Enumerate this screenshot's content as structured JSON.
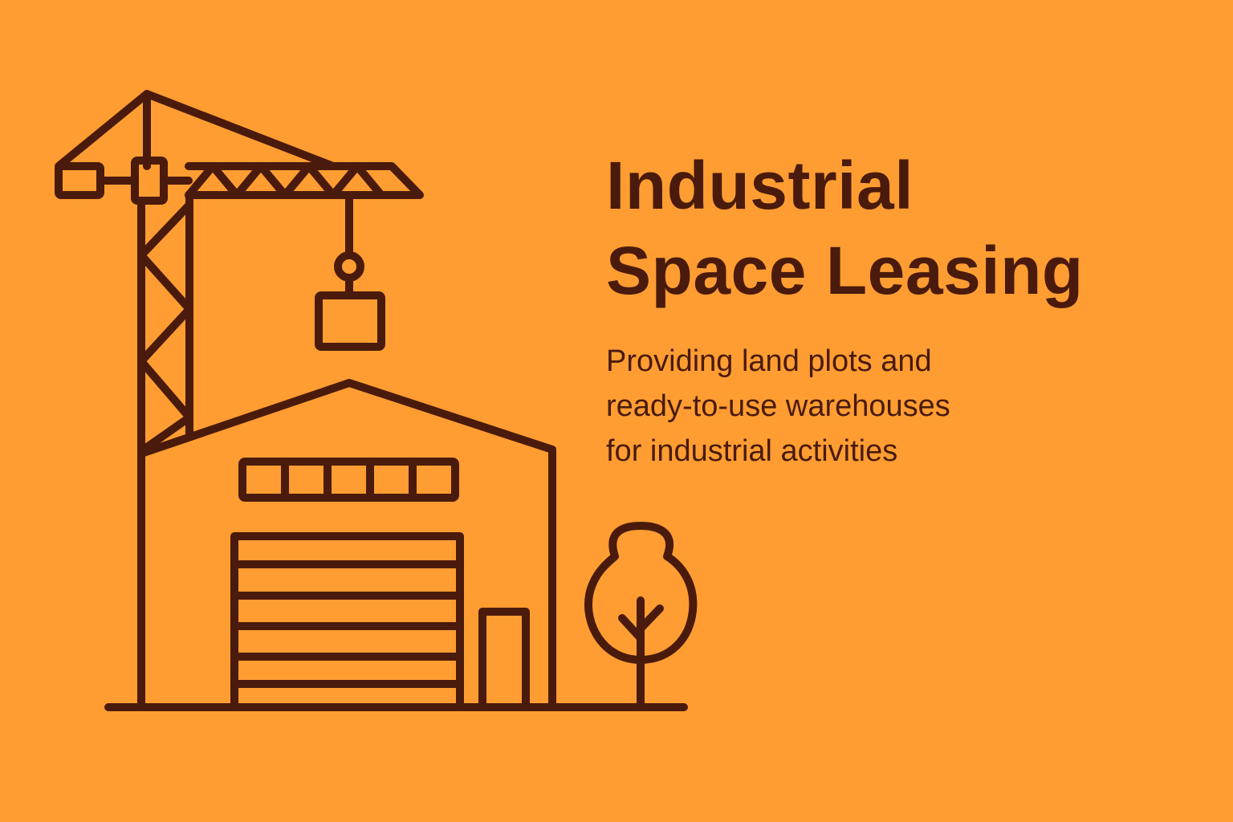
{
  "headline": {
    "line1": "Industrial",
    "line2": "Space Leasing"
  },
  "tagline": {
    "line1": "Providing land plots and",
    "line2": "ready-to-use warehouses",
    "line3": "for industrial activities"
  },
  "colors": {
    "background": "#FF9D32",
    "ink": "#4A1B0C"
  },
  "icons": {
    "crane": "tower-crane-icon",
    "warehouse": "warehouse-icon",
    "tree": "tree-icon"
  }
}
